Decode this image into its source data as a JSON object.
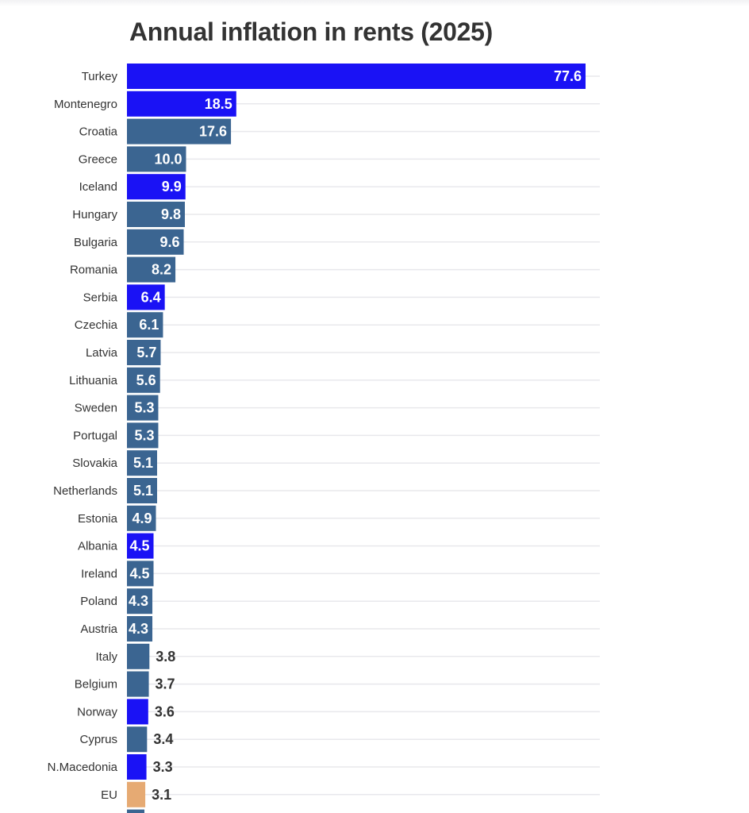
{
  "chart_data": {
    "type": "bar",
    "orientation": "horizontal",
    "title": "Annual inflation in rents (2025)",
    "xlabel": "",
    "ylabel": "",
    "xlim": [
      0,
      80
    ],
    "grid": true,
    "categories": [
      "Turkey",
      "Montenegro",
      "Croatia",
      "Greece",
      "Iceland",
      "Hungary",
      "Bulgaria",
      "Romania",
      "Serbia",
      "Czechia",
      "Latvia",
      "Lithuania",
      "Sweden",
      "Portugal",
      "Slovakia",
      "Netherlands",
      "Estonia",
      "Albania",
      "Ireland",
      "Poland",
      "Austria",
      "Italy",
      "Belgium",
      "Norway",
      "Cyprus",
      "N.Macedonia",
      "EU"
    ],
    "values": [
      77.6,
      18.5,
      17.6,
      10.0,
      9.9,
      9.8,
      9.6,
      8.2,
      6.4,
      6.1,
      5.7,
      5.6,
      5.3,
      5.3,
      5.1,
      5.1,
      4.9,
      4.5,
      4.5,
      4.3,
      4.3,
      3.8,
      3.7,
      3.6,
      3.4,
      3.3,
      3.1
    ],
    "value_labels": [
      "77.6",
      "18.5",
      "17.6",
      "10.0",
      "9.9",
      "9.8",
      "9.6",
      "8.2",
      "6.4",
      "6.1",
      "5.7",
      "5.6",
      "5.3",
      "5.3",
      "5.1",
      "5.1",
      "4.9",
      "4.5",
      "4.5",
      "4.3",
      "4.3",
      "3.8",
      "3.7",
      "3.6",
      "3.4",
      "3.3",
      "3.1"
    ],
    "groups": [
      "non-eu",
      "non-eu",
      "eu",
      "eu",
      "non-eu",
      "eu",
      "eu",
      "eu",
      "non-eu",
      "eu",
      "eu",
      "eu",
      "eu",
      "eu",
      "eu",
      "eu",
      "eu",
      "non-eu",
      "eu",
      "eu",
      "eu",
      "eu",
      "eu",
      "non-eu",
      "eu",
      "non-eu",
      "eu-average"
    ],
    "colors": {
      "non-eu": "#1a12f5",
      "eu": "#3b6591",
      "eu-average": "#e6aa73"
    }
  }
}
